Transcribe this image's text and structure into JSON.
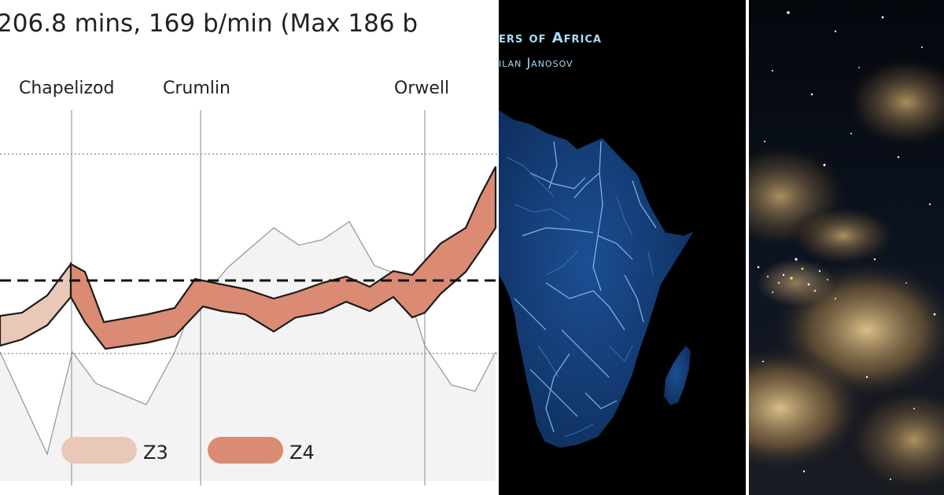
{
  "chart": {
    "title": "206.8 mins, 169 b/min (Max 186 b",
    "places": [
      {
        "name": "Chapelizod"
      },
      {
        "name": "Crumlin"
      },
      {
        "name": "Orwell"
      }
    ],
    "legend": [
      {
        "name": "Z3",
        "color": "#e8c8b6"
      },
      {
        "name": "Z4",
        "color": "#db8b73"
      }
    ],
    "colors": {
      "z3": "#e8c8b6",
      "z4": "#db8b73",
      "line": "#1a1a1a",
      "area": "#f1f1f1"
    }
  },
  "map": {
    "title": "ers of Africa",
    "author": "ilan Janosov",
    "river_color": "#2f7fd6",
    "title_color": "#a9dcf7"
  },
  "sky": {
    "description_colors": {
      "cloud": "#c9a56b",
      "space": "#05070d"
    }
  }
}
